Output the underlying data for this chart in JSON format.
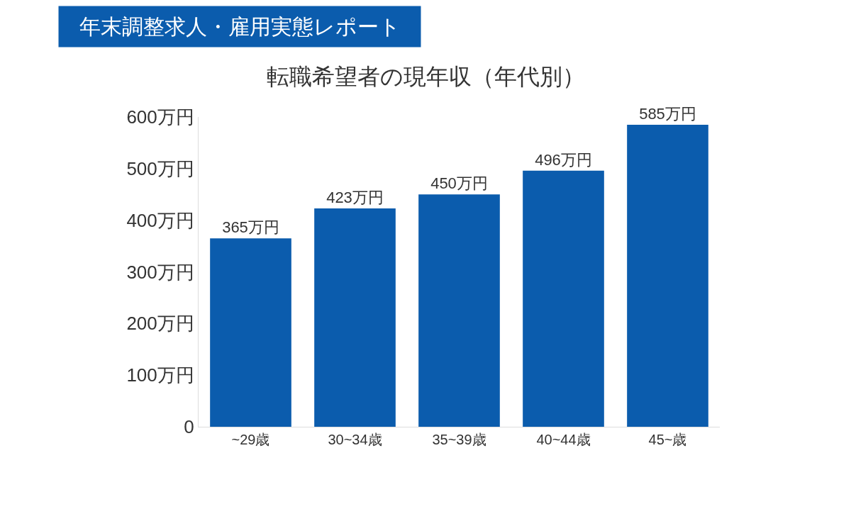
{
  "chart_data": {
    "type": "bar",
    "title": "転職希望者の現年収（年代別）",
    "annotations": [
      "年末調整求人・雇用実態レポート"
    ],
    "categories": [
      "~29歳",
      "30~34歳",
      "35~39歳",
      "40~44歳",
      "45~歳"
    ],
    "values": [
      365,
      423,
      450,
      496,
      585
    ],
    "value_labels": [
      "365万円",
      "423万円",
      "450万円",
      "496万円",
      "585万円"
    ],
    "color": "#0b5cad",
    "ylim": [
      0,
      600
    ],
    "yticks": [
      {
        "value": 0,
        "label": "0"
      },
      {
        "value": 100,
        "label": "100万円"
      },
      {
        "value": 200,
        "label": "200万円"
      },
      {
        "value": 300,
        "label": "300万円"
      },
      {
        "value": 400,
        "label": "400万円"
      },
      {
        "value": 500,
        "label": "500万円"
      },
      {
        "value": 600,
        "label": "600万円"
      }
    ],
    "grid": false,
    "legend": false
  }
}
